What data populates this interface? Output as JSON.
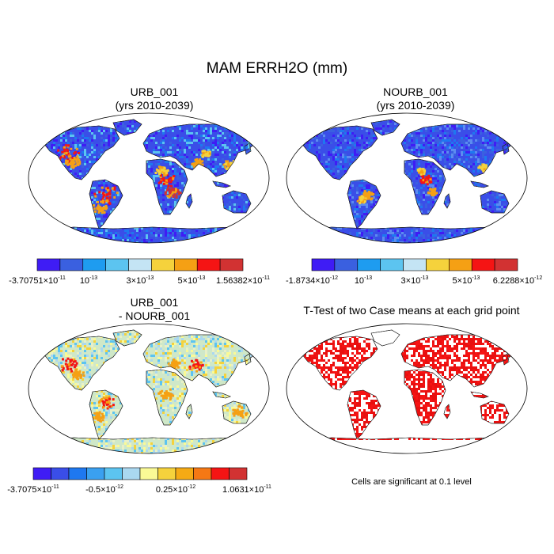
{
  "title": "MAM ERRH2O (mm)",
  "panels": [
    {
      "title_line1": "URB_001",
      "title_line2": "(yrs 2010-2039)",
      "colorbar": {
        "colors": [
          "#3f1cf5",
          "#3a60e0",
          "#1e9cf0",
          "#5cc4f0",
          "#c4e4f4",
          "#f5d23c",
          "#f5a014",
          "#f51414",
          "#d23232"
        ],
        "labels": [
          {
            "mant": "-3.70751×10",
            "exp": "-11"
          },
          {
            "mant": "10",
            "exp": "-13"
          },
          {
            "mant": "3×10",
            "exp": "-13"
          },
          {
            "mant": "5×10",
            "exp": "-13"
          },
          {
            "mant": "1.56382×10",
            "exp": "-11"
          }
        ]
      }
    },
    {
      "title_line1": "NOURB_001",
      "title_line2": "(yrs 2010-2039)",
      "colorbar": {
        "colors": [
          "#3f1cf5",
          "#3a60e0",
          "#1e9cf0",
          "#5cc4f0",
          "#c4e4f4",
          "#f5d23c",
          "#f5a014",
          "#f51414",
          "#d23232"
        ],
        "labels": [
          {
            "mant": "-1.8734×10",
            "exp": "-12"
          },
          {
            "mant": "10",
            "exp": "-13"
          },
          {
            "mant": "3×10",
            "exp": "-13"
          },
          {
            "mant": "5×10",
            "exp": "-13"
          },
          {
            "mant": "6.2288×10",
            "exp": "-12"
          }
        ]
      }
    },
    {
      "title_line1": "URB_001",
      "title_line2": "- NOURB_001",
      "colorbar": {
        "colors": [
          "#3f1cf5",
          "#3a4ee8",
          "#1e78f0",
          "#3aa0f0",
          "#5cc4f0",
          "#aad8f0",
          "#fafa96",
          "#f5d23c",
          "#f5aa14",
          "#f57814",
          "#f51414",
          "#d23232"
        ],
        "labels": [
          {
            "mant": "-3.7075×10",
            "exp": "-11"
          },
          {
            "mant": "-0.5×10",
            "exp": "-12"
          },
          {
            "mant": "0.25×10",
            "exp": "-12"
          },
          {
            "mant": "1.0631×10",
            "exp": "-11"
          }
        ]
      }
    },
    {
      "title_line1": "T-Test of two Case means at each grid point",
      "note": "Cells are significant at 0.1 level"
    }
  ]
}
